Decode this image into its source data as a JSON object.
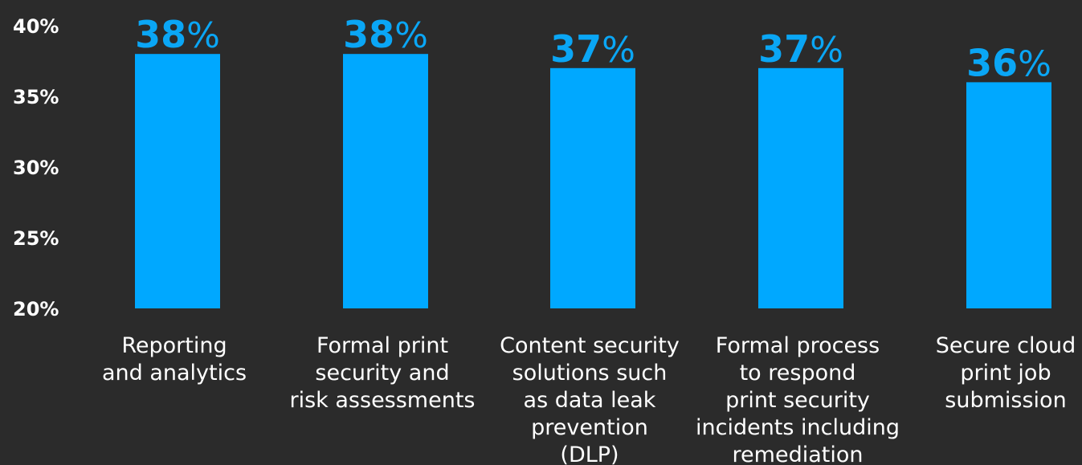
{
  "chart_data": {
    "type": "bar",
    "categories": [
      [
        "Reporting",
        "and analytics"
      ],
      [
        "Formal print",
        "security and",
        "risk assessments"
      ],
      [
        "Content security",
        "solutions such",
        "as data leak",
        "prevention",
        "(DLP)"
      ],
      [
        "Formal process",
        "to respond",
        "print security",
        "incidents including",
        "remediation"
      ],
      [
        "Secure cloud",
        "print job",
        "submission"
      ]
    ],
    "values": [
      38,
      38,
      37,
      37,
      36
    ],
    "value_labels": [
      {
        "number": "38",
        "suffix": "%"
      },
      {
        "number": "38",
        "suffix": "%"
      },
      {
        "number": "37",
        "suffix": "%"
      },
      {
        "number": "37",
        "suffix": "%"
      },
      {
        "number": "36",
        "suffix": "%"
      }
    ],
    "y_ticks": [
      "20%",
      "25%",
      "30%",
      "35%",
      "40%"
    ],
    "y_tick_values": [
      20,
      25,
      30,
      35,
      40
    ],
    "ylim": [
      20,
      40
    ],
    "title": "",
    "xlabel": "",
    "ylabel": "",
    "grid": false,
    "colors": {
      "bar": "#00a8ff",
      "value_label": "#0aa6f5",
      "tick": "#ffffff",
      "background": "#2b2b2b"
    }
  }
}
